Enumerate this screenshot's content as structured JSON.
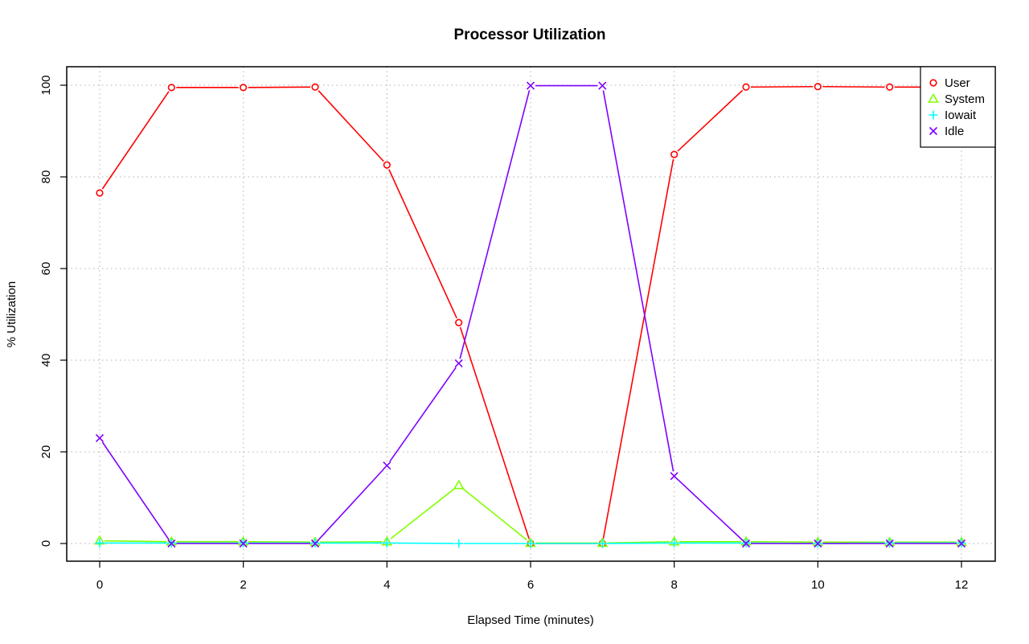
{
  "chart_data": {
    "type": "line",
    "title": "Processor Utilization",
    "xlabel": "Elapsed Time (minutes)",
    "ylabel": "% Utilization",
    "xlim": [
      0,
      12
    ],
    "ylim": [
      0,
      100
    ],
    "xticks": [
      0,
      2,
      4,
      6,
      8,
      10,
      12
    ],
    "yticks": [
      0,
      20,
      40,
      60,
      80,
      100
    ],
    "grid": true,
    "legend_position": "top-right",
    "x": [
      0,
      1,
      2,
      3,
      4,
      5,
      6,
      7,
      8,
      9,
      10,
      11,
      12
    ],
    "series": [
      {
        "name": "User",
        "marker": "circle",
        "color": "#ff0000",
        "values": [
          76.5,
          99.5,
          99.5,
          99.6,
          82.6,
          48.2,
          0,
          0,
          84.9,
          99.6,
          99.7,
          99.6,
          99.6
        ]
      },
      {
        "name": "System",
        "marker": "triangle",
        "color": "#80ff00",
        "values": [
          0.6,
          0.4,
          0.4,
          0.3,
          0.4,
          12.7,
          0.1,
          0.1,
          0.4,
          0.4,
          0.3,
          0.3,
          0.3
        ]
      },
      {
        "name": "Iowait",
        "marker": "plus",
        "color": "#00ffff",
        "values": [
          0.1,
          0.1,
          0.1,
          0.1,
          0.1,
          0,
          0,
          0,
          0.1,
          0.1,
          0,
          0.1,
          0.1
        ]
      },
      {
        "name": "Idle",
        "marker": "cross",
        "color": "#8000ff",
        "values": [
          23,
          0,
          0,
          0,
          17,
          39.3,
          99.9,
          99.9,
          14.7,
          0,
          0,
          0,
          0
        ]
      }
    ]
  }
}
